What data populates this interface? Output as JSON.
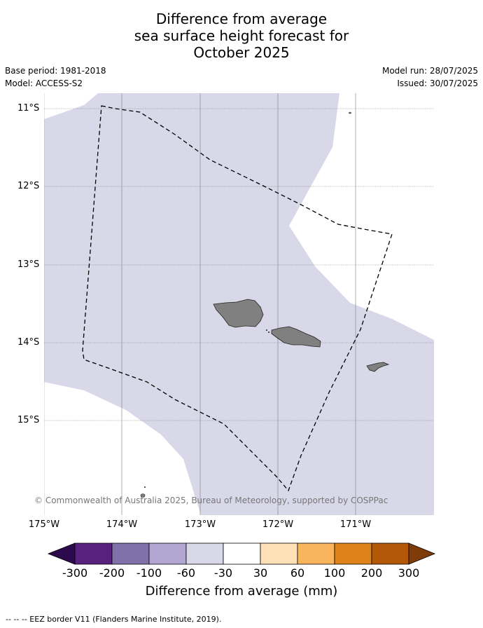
{
  "title": {
    "line1": "Difference from average",
    "line2": "sea surface height forecast for",
    "line3": "October 2025"
  },
  "meta": {
    "base_period": "Base period: 1981-2018",
    "model": "Model: ACCESS-S2",
    "model_run": "Model run: 28/07/2025",
    "issued": "Issued: 30/07/2025"
  },
  "map": {
    "latitude_labels": [
      "11°S",
      "12°S",
      "13°S",
      "14°S",
      "15°S"
    ],
    "longitude_labels": [
      "175°W",
      "174°W",
      "173°W",
      "172°W",
      "171°W"
    ],
    "land_color": "#808080",
    "anomaly_fill_color": "#d8d8e9",
    "eez_border_style": "dashed black"
  },
  "copyright": "© Commonwealth of Australia 2025, Bureau of Meteorology, supported by COSPPac",
  "colorbar": {
    "title": "Difference from average (mm)",
    "tick_labels": [
      "-300",
      "-200",
      "-100",
      "-60",
      "-30",
      "30",
      "60",
      "100",
      "200",
      "300"
    ],
    "colors": [
      "#2d0a4d",
      "#56217f",
      "#8270ab",
      "#b0a6d1",
      "#d8d8e9",
      "#ffffff",
      "#fde0b6",
      "#f9b55e",
      "#e0821a",
      "#b35806",
      "#7f3b08"
    ]
  },
  "footer": "--  --  -- EEZ border V11 (Flanders Marine Institute, 2019)."
}
